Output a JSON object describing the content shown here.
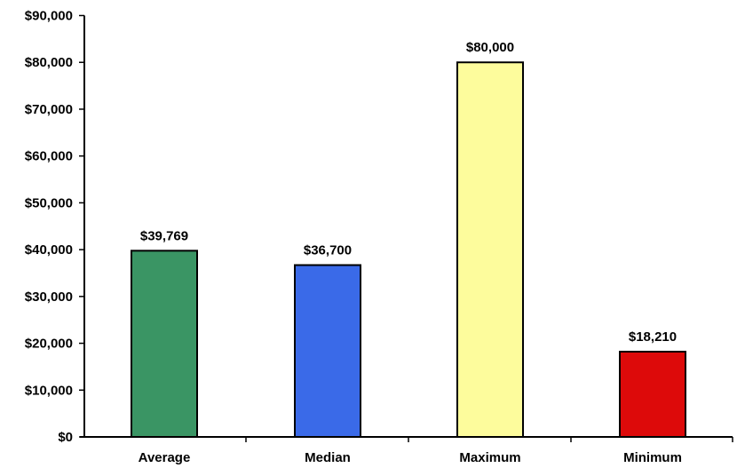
{
  "chart_data": {
    "type": "bar",
    "categories": [
      "Average",
      "Median",
      "Maximum",
      "Minimum"
    ],
    "values": [
      39769,
      36700,
      80000,
      18210
    ],
    "data_labels": [
      "$39,769",
      "$36,700",
      "$80,000",
      "$18,210"
    ],
    "bar_colors": [
      "#3a9564",
      "#3a6ae8",
      "#fdfc9c",
      "#dd0a0a"
    ],
    "ylim": [
      0,
      90000
    ],
    "ytick_values": [
      0,
      10000,
      20000,
      30000,
      40000,
      50000,
      60000,
      70000,
      80000,
      90000
    ],
    "ytick_labels": [
      "$0",
      "$10,000",
      "$20,000",
      "$30,000",
      "$40,000",
      "$50,000",
      "$60,000",
      "$70,000",
      "$80,000",
      "$90,000"
    ],
    "title": "",
    "xlabel": "",
    "ylabel": "",
    "grid": false,
    "legend": "none"
  }
}
